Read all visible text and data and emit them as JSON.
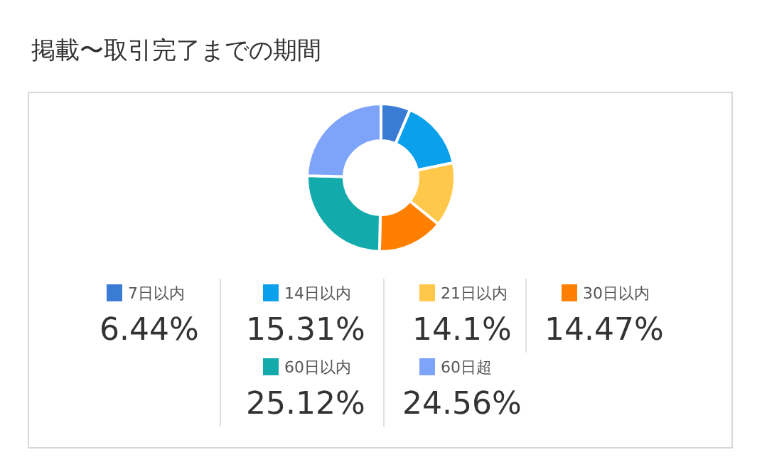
{
  "chart_data": {
    "type": "donut",
    "title": "掲載〜取引完了までの期間",
    "categories": [
      "7日以内",
      "14日以内",
      "21日以内",
      "30日以内",
      "60日以内",
      "60日超"
    ],
    "values": [
      6.44,
      15.31,
      14.1,
      14.47,
      25.12,
      24.56
    ],
    "value_labels": [
      "6.44%",
      "15.31%",
      "14.1%",
      "14.47%",
      "25.12%",
      "24.56%"
    ],
    "colors": [
      "#3a7bd5",
      "#0aa0ec",
      "#ffc84a",
      "#ff8000",
      "#13aaac",
      "#7ea4fa"
    ],
    "legend": "bottom"
  }
}
